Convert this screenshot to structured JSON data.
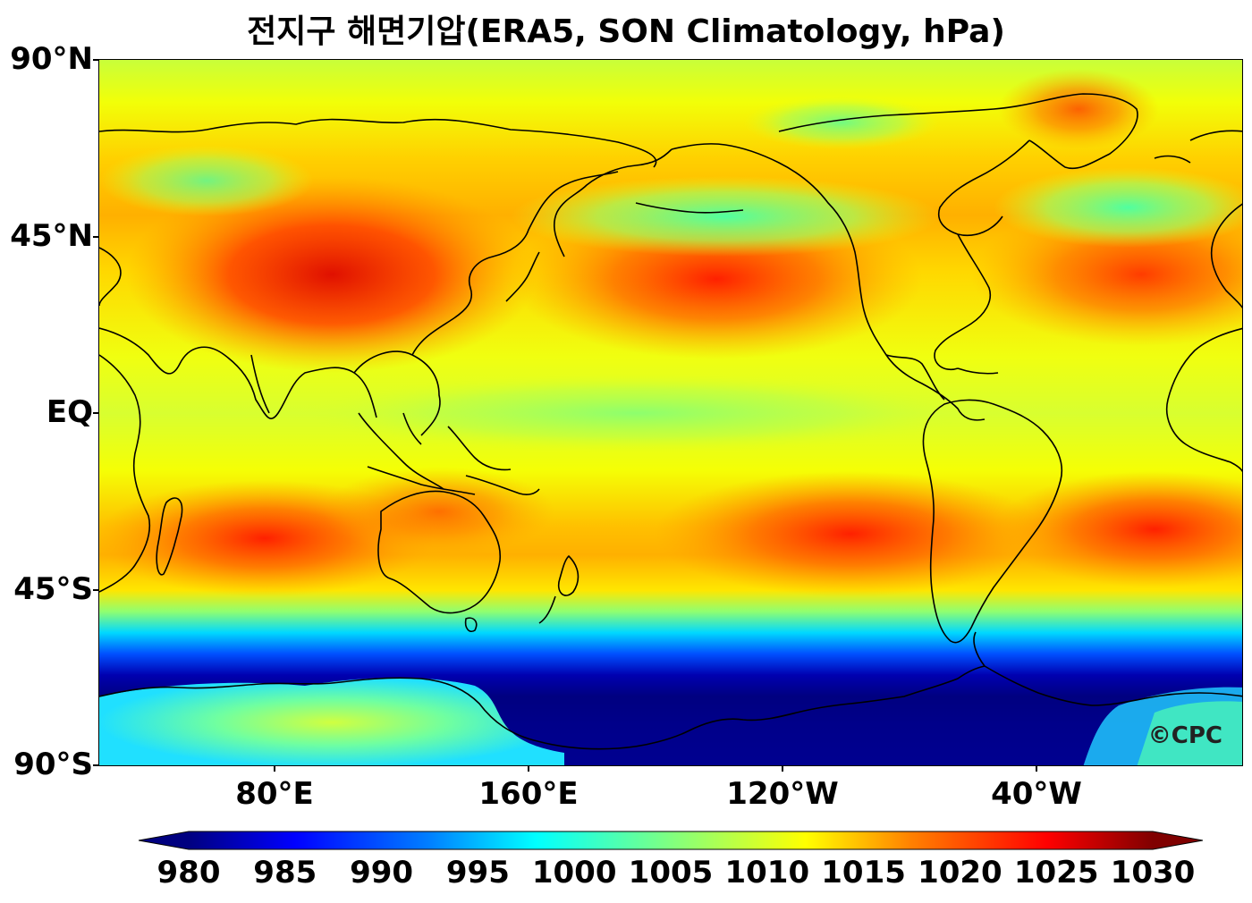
{
  "title": "전지구 해면기압(ERA5, SON Climatology, hPa)",
  "lat_labels": [
    "90°N",
    "45°N",
    "EQ",
    "45°S",
    "90°S"
  ],
  "lon_labels": [
    "80°E",
    "160°E",
    "120°W",
    "40°W"
  ],
  "colorbar": {
    "ticks": [
      "980",
      "985",
      "990",
      "995",
      "1000",
      "1005",
      "1010",
      "1015",
      "1020",
      "1025",
      "1030"
    ],
    "min": 980,
    "max": 1030,
    "extend": "both",
    "colormap": "jet",
    "colors": [
      "#000080",
      "#0000ff",
      "#0080ff",
      "#00ffff",
      "#80ff80",
      "#ffff00",
      "#ff8000",
      "#ff0000",
      "#800000"
    ]
  },
  "watermark": "©CPC"
}
